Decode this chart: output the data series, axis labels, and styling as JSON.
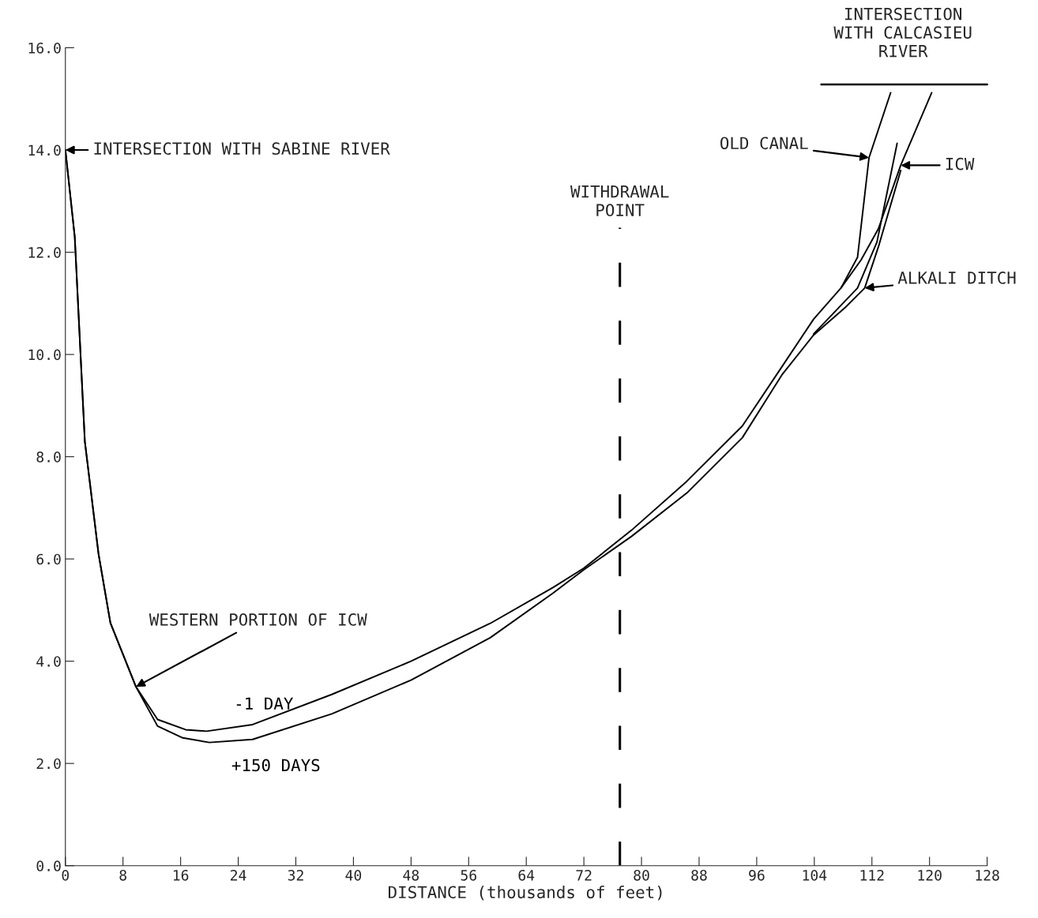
{
  "chart_data": {
    "type": "line",
    "xlabel": "DISTANCE (thousands of feet)",
    "xlim": [
      0,
      128
    ],
    "xticks": [
      0,
      8,
      16,
      24,
      32,
      40,
      48,
      56,
      64,
      72,
      80,
      88,
      96,
      104,
      112,
      120,
      128
    ],
    "ylim": [
      0,
      16
    ],
    "yticks": [
      {
        "value": 0,
        "label": "0.0"
      },
      {
        "value": 2,
        "label": "2.0"
      },
      {
        "value": 4,
        "label": "4.0"
      },
      {
        "value": 6,
        "label": "6.0"
      },
      {
        "value": 8,
        "label": "8.0"
      },
      {
        "value": 10,
        "label": "10.0"
      },
      {
        "value": 12,
        "label": "12.0"
      },
      {
        "value": 14,
        "label": "14.0"
      },
      {
        "value": 16,
        "label": "16.0"
      }
    ],
    "grid": false,
    "legend": false,
    "line_style": "solid",
    "marker": "none",
    "series": [
      {
        "name": "-1 DAY",
        "color": "#000000",
        "x": [
          0,
          1.3,
          2.7,
          4.6,
          6.25,
          9.8,
          12.8,
          16.7,
          19.6,
          26,
          37,
          48,
          59,
          67.7,
          72,
          78.6,
          86.3,
          94,
          99.5,
          103.9,
          107.7,
          110.5,
          112.9,
          116,
          120.3
        ],
        "values": [
          14.0,
          12.3,
          8.3,
          6.1,
          4.75,
          3.5,
          2.86,
          2.66,
          2.63,
          2.76,
          3.35,
          4.0,
          4.74,
          5.44,
          5.82,
          6.56,
          7.52,
          8.6,
          9.76,
          10.69,
          11.3,
          11.85,
          12.46,
          13.7,
          15.12
        ]
      },
      {
        "name": "+150 DAYS",
        "color": "#000000",
        "x": [
          0,
          1.3,
          2.7,
          4.6,
          6.25,
          9.8,
          12.8,
          16.3,
          20,
          26,
          37,
          48,
          59,
          67.7,
          72,
          78.6,
          86.3,
          94,
          99.5,
          103.9,
          108.3,
          111,
          113,
          116
        ],
        "values": [
          14.0,
          12.3,
          8.3,
          6.1,
          4.75,
          3.5,
          2.73,
          2.5,
          2.41,
          2.47,
          2.97,
          3.63,
          4.46,
          5.33,
          5.79,
          6.44,
          7.29,
          8.37,
          9.6,
          10.38,
          10.92,
          11.3,
          12.15,
          13.6
        ]
      },
      {
        "color": "#000000",
        "x": [
          107.7,
          110,
          111.6,
          114.6
        ],
        "values": [
          11.3,
          11.9,
          13.85,
          15.12
        ]
      },
      {
        "color": "#000000",
        "x": [
          103.9,
          110,
          112.7,
          115.5
        ],
        "values": [
          10.4,
          11.3,
          12.2,
          14.13
        ]
      }
    ],
    "ref_lines": [
      {
        "axis": "x",
        "value": 77,
        "label": "WITHDRAWAL\nPOINT",
        "line_style": "dashed",
        "color": "#000000"
      }
    ],
    "annotations": [
      {
        "text": "INTERSECTION WITH SABINE RIVER",
        "x": 0,
        "y": 14.0
      },
      {
        "text": "WESTERN PORTION OF ICW",
        "x": 9.8,
        "y": 3.5
      },
      {
        "text": "OLD CANAL",
        "x": 111.6,
        "y": 13.85
      },
      {
        "text": "ICW",
        "x": 116,
        "y": 13.7
      },
      {
        "text": "ALKALI DITCH",
        "x": 111,
        "y": 11.3
      },
      "INTERSECTION\nWITH CALCASIEU\nRIVER"
    ]
  }
}
